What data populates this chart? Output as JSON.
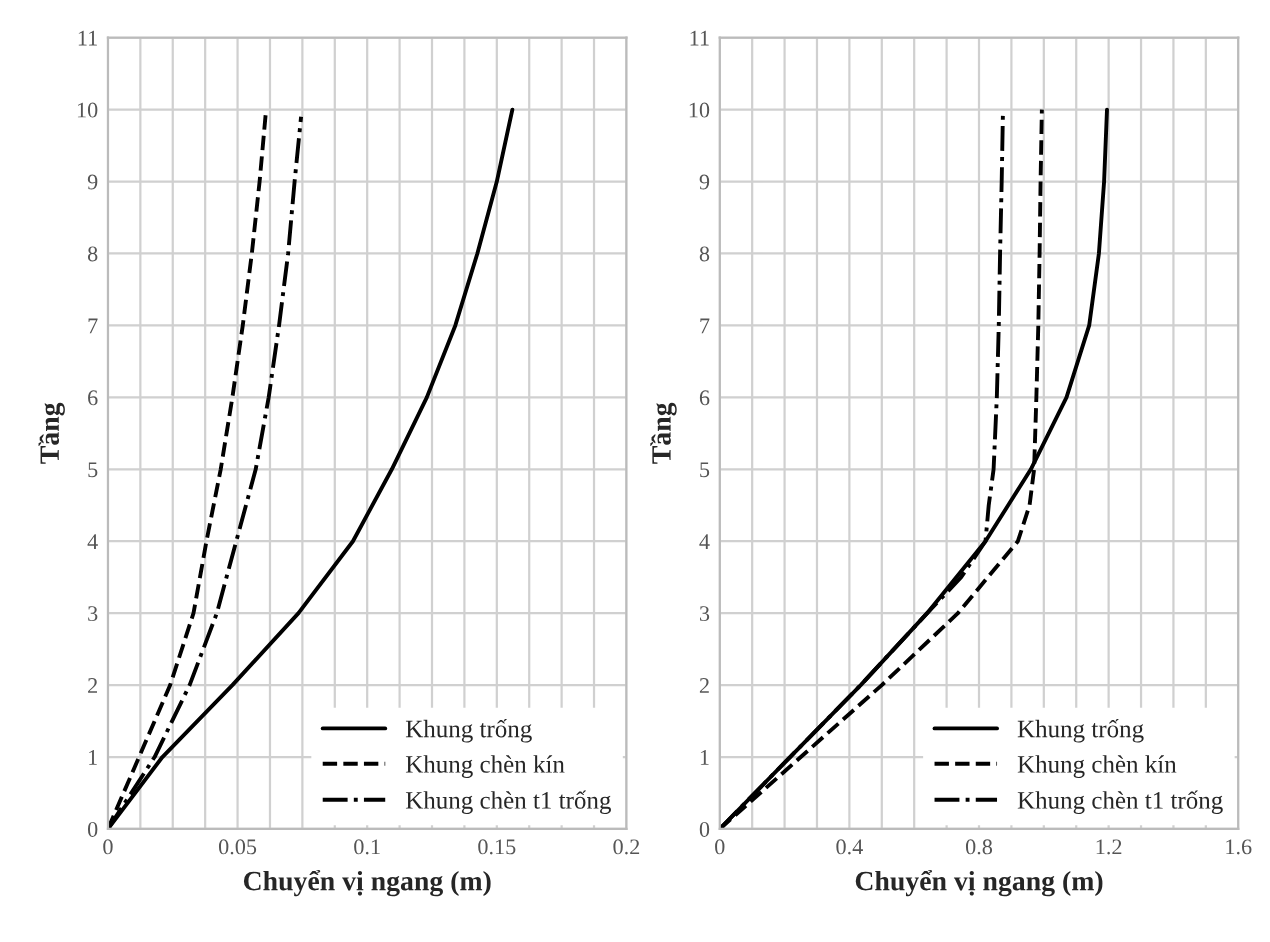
{
  "chart_data": [
    {
      "type": "line",
      "xlabel": "Chuyển vị ngang (m)",
      "ylabel": "Tầng",
      "xlim": [
        0,
        0.2
      ],
      "xticks": [
        0,
        0.05,
        0.1,
        0.15,
        0.2
      ],
      "ylim": [
        0,
        11
      ],
      "yticks": [
        0,
        1,
        2,
        3,
        4,
        5,
        6,
        7,
        8,
        9,
        10,
        11
      ],
      "grid": true,
      "legend": "bottom right",
      "marker": "none",
      "series": [
        {
          "name": "Khung trống",
          "color": "#000000",
          "line_style": "solid",
          "x": [
            0,
            0.021,
            0.048,
            0.0735,
            0.0945,
            0.1095,
            0.123,
            0.134,
            0.1425,
            0.15,
            0.156
          ],
          "values": [
            0,
            1,
            2,
            3,
            4,
            5,
            6,
            7,
            8,
            9,
            10
          ]
        },
        {
          "name": "Khung chèn kín",
          "color": "#000000",
          "line_style": "dashed",
          "x": [
            0,
            0.012,
            0.024,
            0.033,
            0.038,
            0.0435,
            0.048,
            0.052,
            0.0555,
            0.0585,
            0.061
          ],
          "values": [
            0,
            1,
            2,
            3,
            4,
            5,
            6,
            7,
            8,
            9,
            10
          ]
        },
        {
          "name": "Khung chèn t1 trống",
          "color": "#000000",
          "line_style": "dashdot",
          "x": [
            0,
            0.018,
            0.0315,
            0.042,
            0.0495,
            0.057,
            0.062,
            0.066,
            0.0695,
            0.072,
            0.0745
          ],
          "values": [
            0,
            1,
            2,
            3,
            4,
            5,
            6,
            7,
            8,
            9,
            9.9
          ]
        }
      ]
    },
    {
      "type": "line",
      "xlabel": "Chuyển vị ngang (m)",
      "ylabel": "Tầng",
      "xlim": [
        0,
        1.6
      ],
      "xticks": [
        0,
        0.4,
        0.8,
        1.2,
        1.6
      ],
      "ylim": [
        0,
        11
      ],
      "yticks": [
        0,
        1,
        2,
        3,
        4,
        5,
        6,
        7,
        8,
        9,
        10,
        11
      ],
      "grid": true,
      "legend": "bottom right",
      "marker": "none",
      "series": [
        {
          "name": "Khung trống",
          "color": "#000000",
          "line_style": "solid",
          "x": [
            0,
            0.217,
            0.435,
            0.64,
            0.82,
            0.96,
            1.07,
            1.14,
            1.17,
            1.186,
            1.195
          ],
          "values": [
            0,
            1,
            2,
            3,
            4,
            5,
            6,
            7,
            8,
            9,
            10
          ]
        },
        {
          "name": "Khung chèn kín",
          "color": "#000000",
          "line_style": "dashed",
          "x": [
            0,
            0.25,
            0.5,
            0.735,
            0.92,
            0.956,
            0.97,
            0.977,
            0.983,
            0.987,
            0.99,
            0.994
          ],
          "values": [
            0,
            1,
            2,
            3,
            4,
            4.5,
            5,
            6,
            7,
            8,
            9,
            10
          ]
        },
        {
          "name": "Khung chèn t1 trống",
          "color": "#000000",
          "line_style": "dashdot",
          "x": [
            0,
            0.217,
            0.435,
            0.64,
            0.745,
            0.82,
            0.83,
            0.845,
            0.855,
            0.861,
            0.865,
            0.87,
            0.874
          ],
          "values": [
            0,
            1,
            2,
            3,
            3.5,
            4,
            4.5,
            5,
            6,
            7,
            8,
            9,
            10
          ]
        }
      ]
    }
  ]
}
